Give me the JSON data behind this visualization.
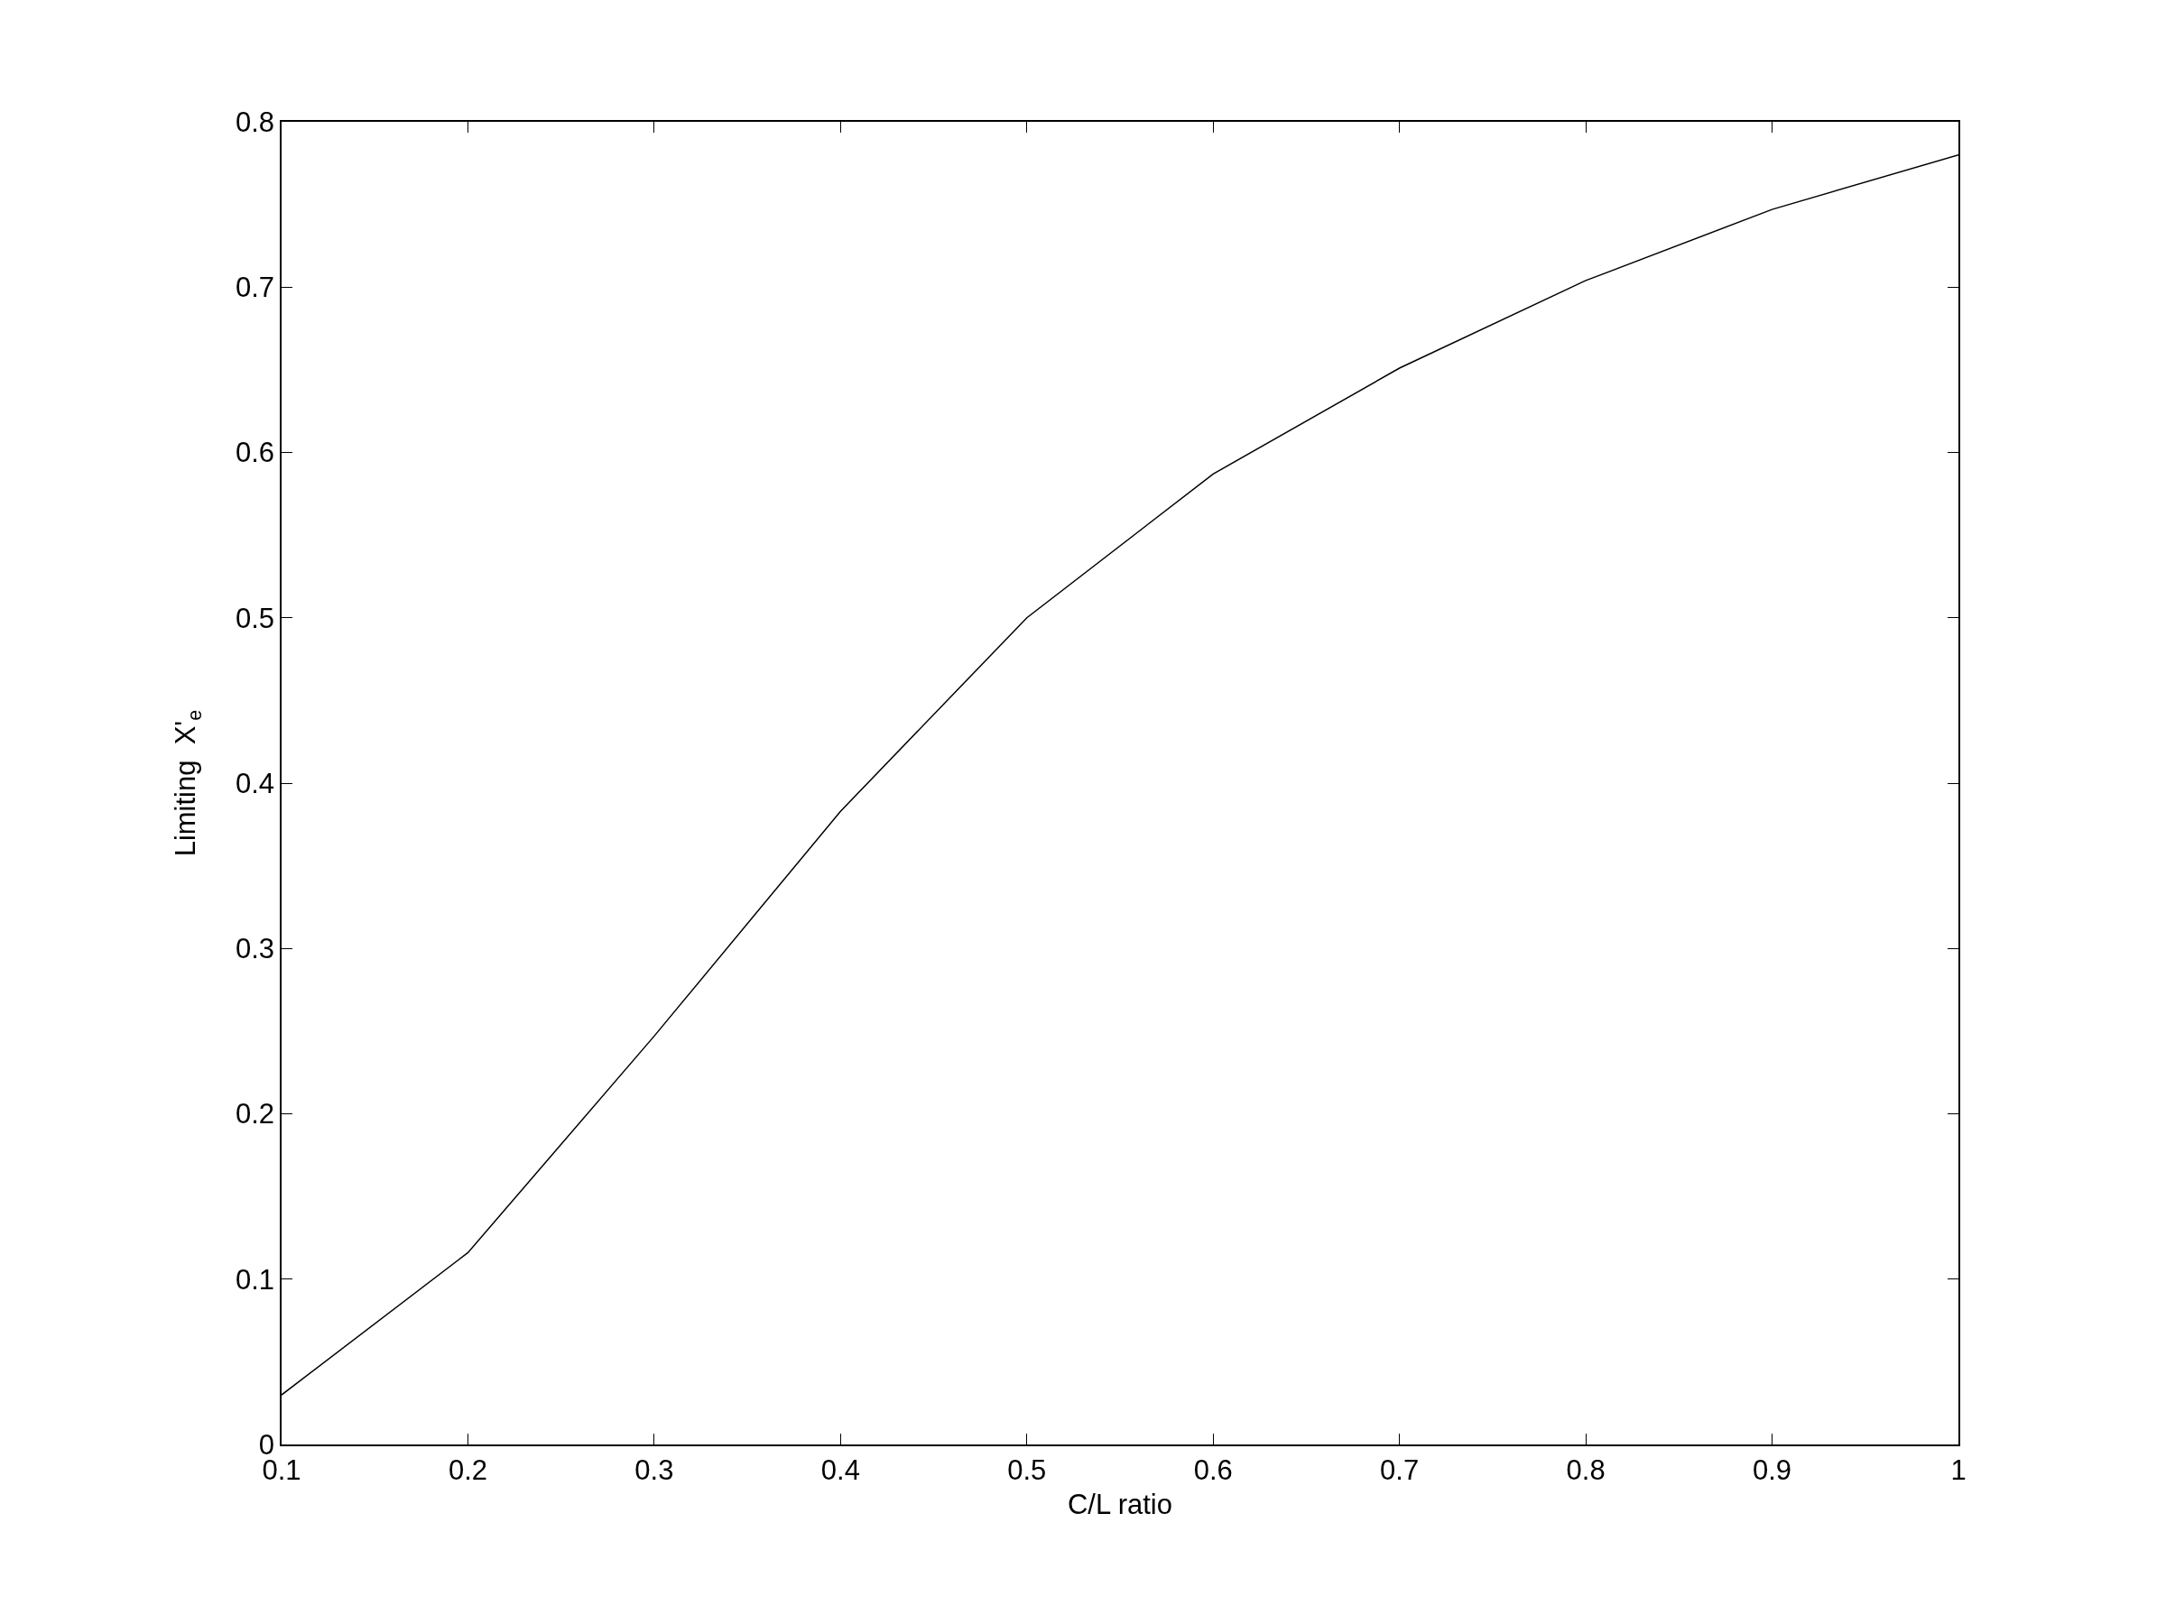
{
  "chart_data": {
    "type": "line",
    "xlabel": "C/L ratio",
    "ylabel": "Limiting  X'$_{e}$",
    "x": [
      0.1,
      0.2,
      0.3,
      0.4,
      0.5,
      0.6,
      0.7,
      0.8,
      0.9,
      1.0
    ],
    "series": [
      {
        "color": "#000000",
        "values": [
          0.03,
          0.116,
          0.247,
          0.383,
          0.5,
          0.587,
          0.651,
          0.704,
          0.747,
          0.78
        ]
      }
    ],
    "xlim": [
      0.1,
      1
    ],
    "ylim": [
      0,
      0.8
    ],
    "xticks": [
      0.1,
      0.2,
      0.3,
      0.4,
      0.5,
      0.6,
      0.7,
      0.8,
      0.9,
      1
    ],
    "yticks": [
      0,
      0.1,
      0.2,
      0.3,
      0.4,
      0.5,
      0.6,
      0.7,
      0.8
    ]
  }
}
